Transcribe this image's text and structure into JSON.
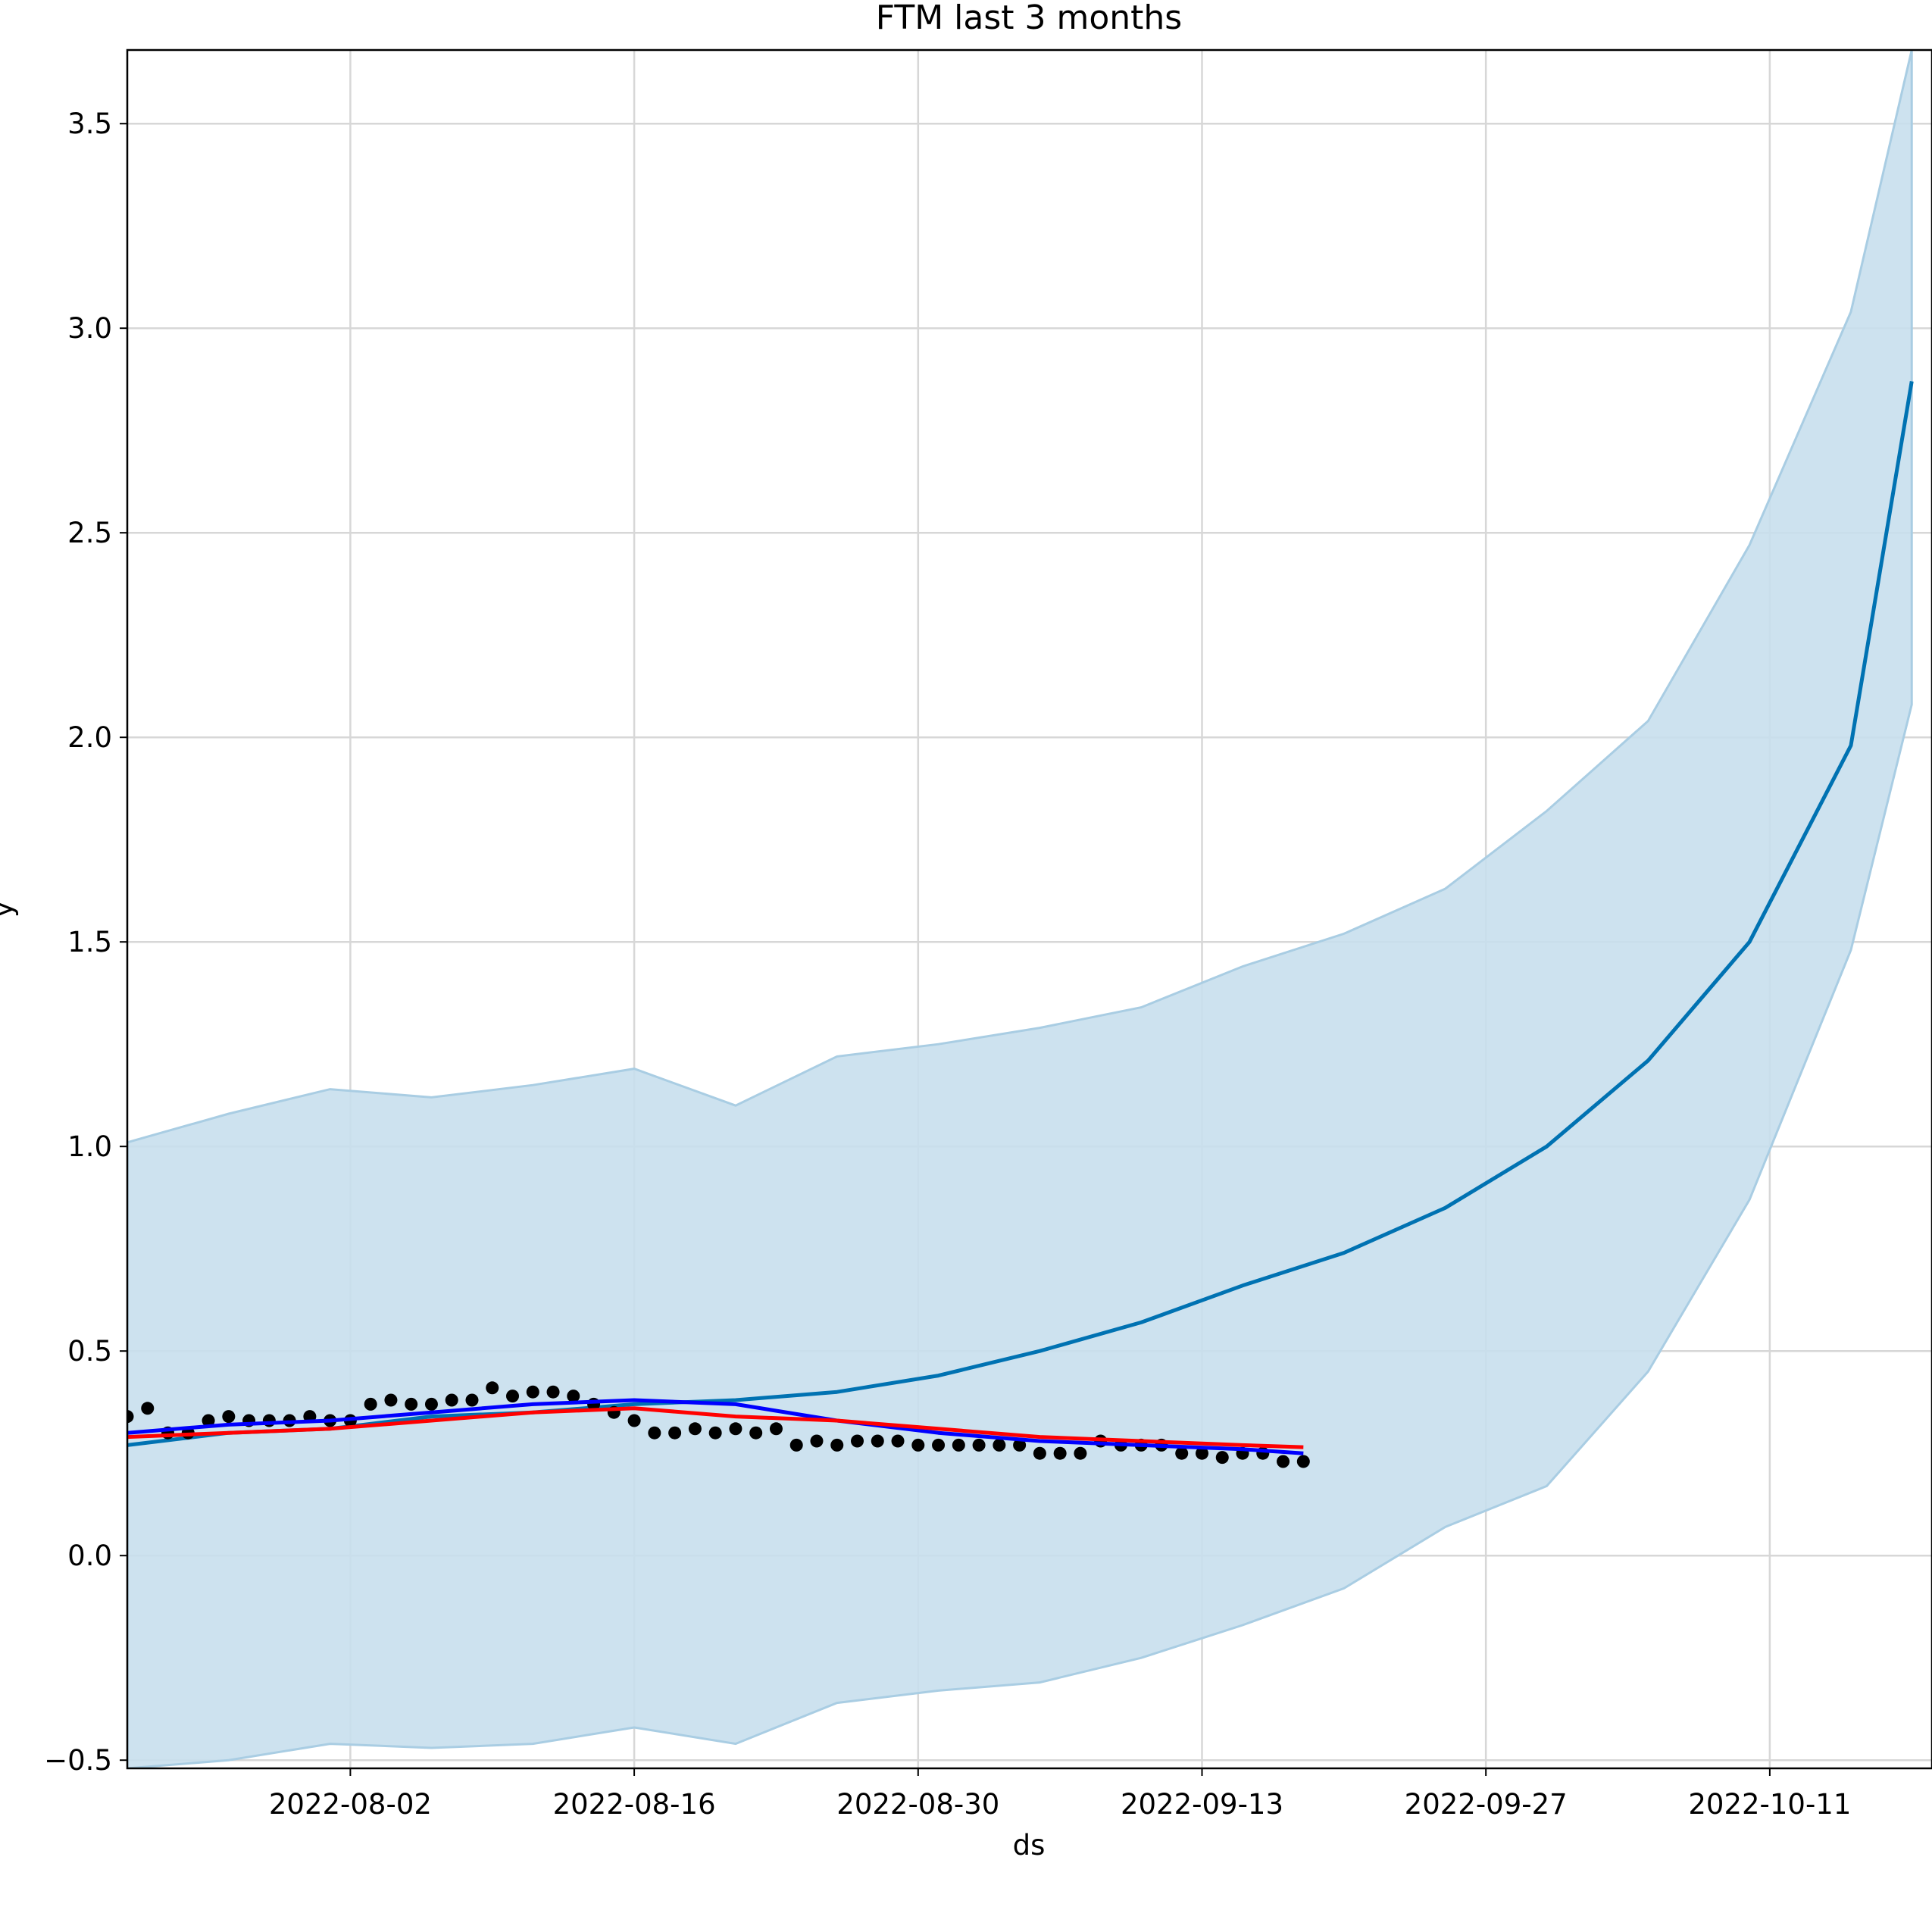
{
  "chart_data": {
    "type": "line",
    "title": "FTM last 3 months",
    "xlabel": "ds",
    "ylabel": "y",
    "x_start": "2022-07-22",
    "x_end": "2022-10-19",
    "xlim": [
      "2022-07-22",
      "2022-10-19"
    ],
    "ylim": [
      -0.52,
      3.68
    ],
    "grid": true,
    "x_ticks": [
      "2022-08-02",
      "2022-08-16",
      "2022-08-30",
      "2022-09-13",
      "2022-09-27",
      "2022-10-11"
    ],
    "y_ticks": [
      -0.5,
      0.0,
      0.5,
      1.0,
      1.5,
      2.0,
      2.5,
      3.0,
      3.5
    ],
    "y_tick_labels": [
      "−0.5",
      "0.0",
      "0.5",
      "1.0",
      "1.5",
      "2.0",
      "2.5",
      "3.0",
      "3.5"
    ],
    "colors": {
      "forecast": "#0072b2",
      "band": "#c8dfed",
      "band_edge": "#a9cde3",
      "observed": "#000000",
      "blue_series": "#0000ff",
      "red_series": "#ff0000"
    },
    "series": [
      {
        "role": "forecast_band",
        "x": [
          0,
          5,
          10,
          15,
          20,
          25,
          30,
          35,
          40,
          45,
          50,
          55,
          60,
          65,
          70,
          75,
          80,
          85,
          88
        ],
        "lower": [
          -0.52,
          -0.5,
          -0.46,
          -0.47,
          -0.46,
          -0.42,
          -0.46,
          -0.36,
          -0.33,
          -0.31,
          -0.25,
          -0.17,
          -0.08,
          0.07,
          0.17,
          0.45,
          0.87,
          1.48,
          2.08
        ],
        "upper": [
          1.01,
          1.08,
          1.14,
          1.12,
          1.15,
          1.19,
          1.1,
          1.22,
          1.25,
          1.29,
          1.34,
          1.44,
          1.52,
          1.63,
          1.82,
          2.04,
          2.47,
          3.04,
          3.68
        ]
      },
      {
        "role": "forecast",
        "x": [
          0,
          5,
          10,
          15,
          20,
          25,
          30,
          35,
          40,
          45,
          50,
          55,
          60,
          65,
          70,
          75,
          80,
          85,
          88
        ],
        "y": [
          0.27,
          0.3,
          0.31,
          0.34,
          0.35,
          0.37,
          0.38,
          0.4,
          0.44,
          0.5,
          0.57,
          0.66,
          0.74,
          0.85,
          1.0,
          1.21,
          1.5,
          1.98,
          2.87
        ]
      },
      {
        "role": "blue_line",
        "x": [
          0,
          5,
          10,
          15,
          20,
          25,
          30,
          35,
          40,
          45,
          50,
          55,
          58
        ],
        "y": [
          0.3,
          0.32,
          0.33,
          0.35,
          0.37,
          0.38,
          0.37,
          0.33,
          0.3,
          0.28,
          0.27,
          0.26,
          0.25
        ]
      },
      {
        "role": "red_line",
        "x": [
          0,
          5,
          10,
          15,
          20,
          25,
          30,
          35,
          40,
          45,
          50,
          55,
          58
        ],
        "y": [
          0.29,
          0.3,
          0.31,
          0.33,
          0.35,
          0.36,
          0.34,
          0.33,
          0.31,
          0.29,
          0.28,
          0.27,
          0.265
        ]
      },
      {
        "role": "observed",
        "x": [
          0,
          1,
          2,
          3,
          4,
          5,
          6,
          7,
          8,
          9,
          10,
          11,
          12,
          13,
          14,
          15,
          16,
          17,
          18,
          19,
          20,
          21,
          22,
          23,
          24,
          25,
          26,
          27,
          28,
          29,
          30,
          31,
          32,
          33,
          34,
          35,
          36,
          37,
          38,
          39,
          40,
          41,
          42,
          43,
          44,
          45,
          46,
          47,
          48,
          49,
          50,
          51,
          52,
          53,
          54,
          55,
          56,
          57,
          58
        ],
        "y": [
          0.34,
          0.36,
          0.3,
          0.3,
          0.33,
          0.34,
          0.33,
          0.33,
          0.33,
          0.34,
          0.33,
          0.33,
          0.37,
          0.38,
          0.37,
          0.37,
          0.38,
          0.38,
          0.41,
          0.39,
          0.4,
          0.4,
          0.39,
          0.37,
          0.35,
          0.33,
          0.3,
          0.3,
          0.31,
          0.3,
          0.31,
          0.3,
          0.31,
          0.27,
          0.28,
          0.27,
          0.28,
          0.28,
          0.28,
          0.27,
          0.27,
          0.27,
          0.27,
          0.27,
          0.27,
          0.25,
          0.25,
          0.25,
          0.28,
          0.27,
          0.27,
          0.27,
          0.25,
          0.25,
          0.24,
          0.25,
          0.25,
          0.23,
          0.23
        ]
      }
    ]
  }
}
